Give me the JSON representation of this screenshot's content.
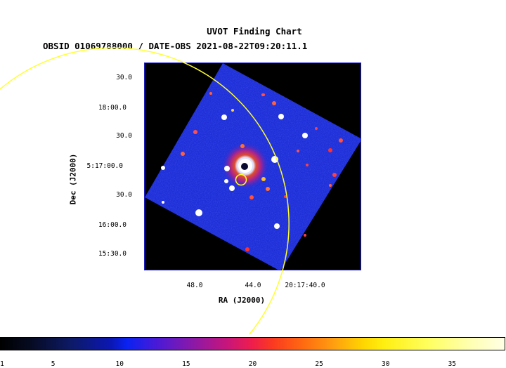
{
  "title": "UVOT Finding Chart",
  "subtitle": "OBSID 01069788000 / DATE-OBS 2021-08-22T09:20:11.1",
  "axes": {
    "ylabel": "Dec (J2000)",
    "xlabel": "RA (J2000)",
    "dec_ticks": [
      "30.0",
      "18:00.0",
      "30.0",
      "5:17:00.0",
      "30.0",
      "16:00.0",
      "15:30.0"
    ],
    "ra_ticks": [
      "48.0",
      "44.0",
      "20:17:40.0"
    ]
  },
  "colorbar": {
    "ticks": [
      "1",
      "5",
      "10",
      "15",
      "20",
      "25",
      "30",
      "35"
    ],
    "min": 1,
    "max": 39
  },
  "colors": {
    "field_fill": "#1e2fd8",
    "overlay": "#ffff30",
    "frame": "#2020d0"
  }
}
